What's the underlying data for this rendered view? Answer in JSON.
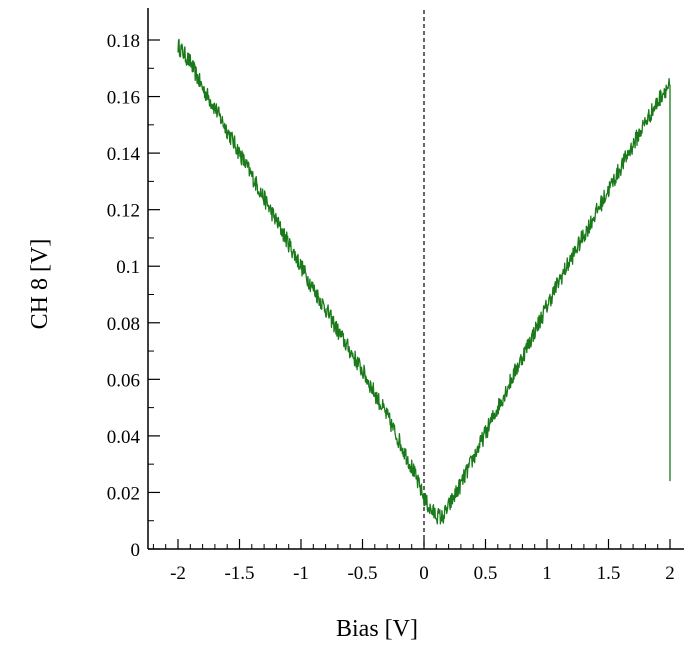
{
  "chart_data": {
    "type": "line",
    "xlabel": "Bias [V]",
    "ylabel": "CH 8 [V]",
    "xlim": [
      -2.25,
      2.1
    ],
    "ylim": [
      0,
      0.19
    ],
    "x_ticks": [
      -2,
      -1.5,
      -1,
      -0.5,
      0,
      0.5,
      1,
      1.5,
      2
    ],
    "x_tick_labels": [
      "-2",
      "-1.5",
      "-1",
      "-0.5",
      "0",
      "0.5",
      "1",
      "1.5",
      "2"
    ],
    "y_ticks": [
      0,
      0.02,
      0.04,
      0.06,
      0.08,
      0.1,
      0.12,
      0.14,
      0.16,
      0.18
    ],
    "y_tick_labels": [
      "0",
      "0.02",
      "0.04",
      "0.06",
      "0.08",
      "0.1",
      "0.12",
      "0.14",
      "0.16",
      "0.18"
    ],
    "vertical_reference_line": {
      "x": 0,
      "style": "dashed"
    },
    "grid": false,
    "series": [
      {
        "color": "#1a7a1a",
        "x": [
          -2.0,
          -1.9,
          -1.8,
          -1.7,
          -1.6,
          -1.5,
          -1.4,
          -1.3,
          -1.2,
          -1.1,
          -1.0,
          -0.9,
          -0.8,
          -0.7,
          -0.6,
          -0.5,
          -0.4,
          -0.3,
          -0.2,
          -0.1,
          0.0,
          0.05,
          0.1,
          0.15,
          0.2,
          0.3,
          0.4,
          0.5,
          0.6,
          0.7,
          0.8,
          0.9,
          1.0,
          1.1,
          1.2,
          1.3,
          1.4,
          1.5,
          1.6,
          1.7,
          1.8,
          1.9,
          1.95,
          2.0,
          2.0,
          2.0
        ],
        "y": [
          0.178,
          0.172,
          0.163,
          0.156,
          0.148,
          0.14,
          0.132,
          0.124,
          0.116,
          0.108,
          0.1,
          0.092,
          0.085,
          0.077,
          0.07,
          0.063,
          0.055,
          0.047,
          0.038,
          0.029,
          0.018,
          0.014,
          0.012,
          0.011,
          0.015,
          0.023,
          0.032,
          0.041,
          0.05,
          0.059,
          0.068,
          0.077,
          0.086,
          0.095,
          0.103,
          0.111,
          0.119,
          0.127,
          0.135,
          0.143,
          0.151,
          0.158,
          0.162,
          0.164,
          0.088,
          0.024
        ],
        "noise_amplitude": 0.003
      }
    ]
  }
}
